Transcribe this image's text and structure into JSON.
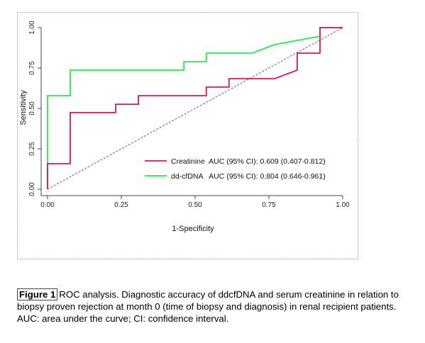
{
  "chart_data": {
    "type": "line",
    "title": "",
    "xlabel": "1-Specificity",
    "ylabel": "Sensitivity",
    "xlim": [
      0,
      1
    ],
    "ylim": [
      0,
      1
    ],
    "x_ticks": [
      "0.00",
      "0.25",
      "0.50",
      "0.75",
      "1.00"
    ],
    "y_ticks": [
      "0.00",
      "0.25",
      "0.50",
      "0.75",
      "1.00"
    ],
    "grid": false,
    "legend_position": "bottom-right",
    "series": [
      {
        "name": "Creatinine",
        "legend_label": "Creatinine  AUC (95% CI): 0.609 (0.407-0.812)",
        "color": "#d6185a",
        "x": [
          0,
          0,
          0.077,
          0.077,
          0.231,
          0.231,
          0.308,
          0.308,
          0.538,
          0.538,
          0.615,
          0.615,
          0.769,
          0.846,
          0.846,
          0.923,
          0.923,
          1.0
        ],
        "y": [
          0,
          0.158,
          0.158,
          0.474,
          0.474,
          0.526,
          0.526,
          0.579,
          0.579,
          0.632,
          0.632,
          0.684,
          0.684,
          0.737,
          0.842,
          0.842,
          1.0,
          1.0
        ]
      },
      {
        "name": "dd-cfDNA",
        "legend_label": "dd-cfDNA   AUC (95% CI): 0.804 (0.646-0.961)",
        "color": "#22ee44",
        "x": [
          0,
          0,
          0.077,
          0.077,
          0.462,
          0.462,
          0.538,
          0.538,
          0.692,
          0.769,
          0.923,
          0.923,
          1.0
        ],
        "y": [
          0,
          0.579,
          0.579,
          0.737,
          0.737,
          0.789,
          0.789,
          0.842,
          0.842,
          0.895,
          0.947,
          1.0,
          1.0
        ]
      }
    ],
    "reference_line": {
      "x": [
        0,
        1
      ],
      "y": [
        0,
        1
      ],
      "style": "dashed",
      "color": "#666666"
    }
  },
  "caption": {
    "label": "Figure 1",
    "text": "ROC analysis. Diagnostic accuracy of ddcfDNA and serum creatinine in relation to biopsy proven rejection at month 0 (time of biopsy and diagnosis) in renal recipient patients. AUC: area under the curve; CI: confidence interval."
  }
}
